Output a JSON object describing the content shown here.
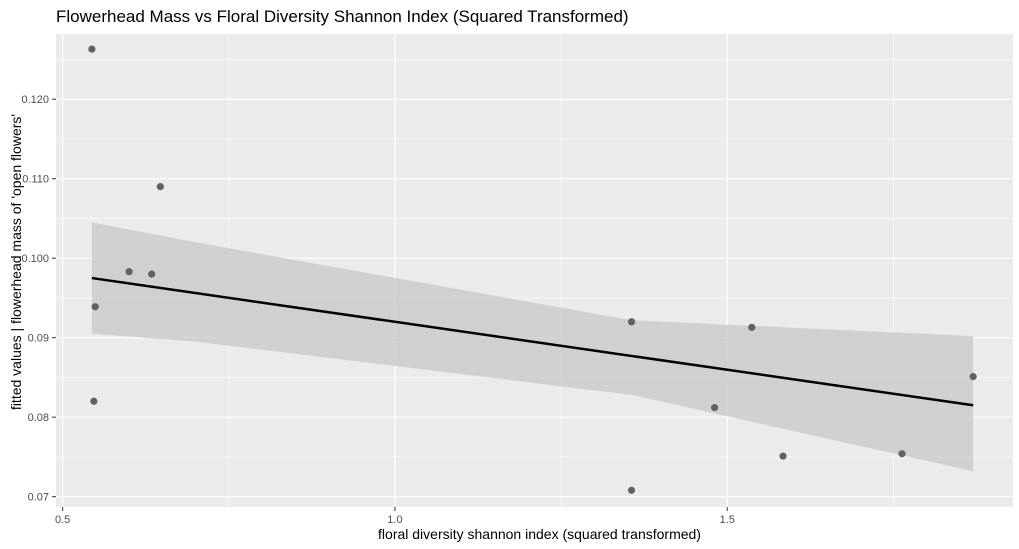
{
  "chart_data": {
    "type": "scatter",
    "title": "Flowerhead Mass vs Floral Diversity Shannon Index (Squared Transformed)",
    "xlabel": "floral diversity shannon index (squared transformed)",
    "ylabel": "fitted values | flowerhead mass of 'open flowers'",
    "xlim": [
      0.49,
      1.93
    ],
    "ylim": [
      0.0687,
      0.1282
    ],
    "x_ticks": [
      0.5,
      1.0,
      1.5
    ],
    "x_tick_labels": [
      "0.5",
      "1.0",
      "1.5"
    ],
    "y_ticks": [
      0.07,
      0.08,
      0.09,
      0.1,
      0.11,
      0.12
    ],
    "y_tick_labels": [
      "0.07",
      "0.08",
      "0.09",
      "0.100",
      "0.110",
      "0.120"
    ],
    "grid": true,
    "points": [
      {
        "x": 0.544,
        "y": 0.1263
      },
      {
        "x": 0.549,
        "y": 0.0939
      },
      {
        "x": 0.547,
        "y": 0.082
      },
      {
        "x": 0.6,
        "y": 0.0983
      },
      {
        "x": 0.634,
        "y": 0.098
      },
      {
        "x": 0.647,
        "y": 0.109
      },
      {
        "x": 1.356,
        "y": 0.092
      },
      {
        "x": 1.356,
        "y": 0.0708
      },
      {
        "x": 1.481,
        "y": 0.0812
      },
      {
        "x": 1.537,
        "y": 0.0913
      },
      {
        "x": 1.584,
        "y": 0.0751
      },
      {
        "x": 1.763,
        "y": 0.0754
      },
      {
        "x": 1.87,
        "y": 0.0851
      }
    ],
    "fit_line": {
      "x": [
        0.544,
        1.87
      ],
      "y": [
        0.0975,
        0.0815
      ]
    },
    "confidence_band": {
      "x": [
        0.544,
        0.7,
        1.356,
        1.87
      ],
      "upper": [
        0.1045,
        0.102,
        0.0922,
        0.0902
      ],
      "lower": [
        0.0905,
        0.0895,
        0.0828,
        0.0732
      ]
    },
    "colors": {
      "panel": "#ebebeb",
      "grid": "#ffffff",
      "point": "#616161",
      "line": "#000000",
      "band": "#c7c7c7"
    }
  }
}
